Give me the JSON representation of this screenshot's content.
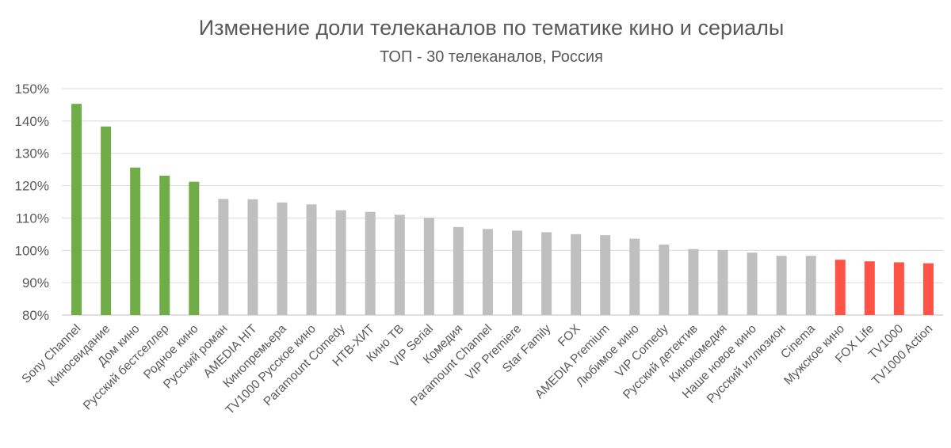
{
  "chart_data": {
    "type": "bar",
    "title": "Изменение доли телеканалов по тематике кино и сериалы",
    "subtitle": "ТОП - 30 телеканалов, Россия",
    "xlabel": "",
    "ylabel": "",
    "ylim": [
      80,
      150
    ],
    "yticks": [
      "80%",
      "90%",
      "100%",
      "110%",
      "120%",
      "130%",
      "140%",
      "150%"
    ],
    "grid": true,
    "legend": "none",
    "colors": {
      "growth": "#70ad47",
      "neutral": "#bfbfbf",
      "decline": "#ff5347"
    },
    "categories": [
      "Sony Channel",
      "Киносвидание",
      "Дом кино",
      "Русский бестселлер",
      "Родное кино",
      "Русский роман",
      "AMEDIA HIT",
      "Кинопремьера",
      "TV1000 Русское кино",
      "Paramount Comedy",
      "НТВ-ХИТ",
      "Кино ТВ",
      "VIP Serial",
      "Комедия",
      "Paramount Channel",
      "VIP Premiere",
      "Star Family",
      "FOX",
      "AMEDIA Premium",
      "Любимое кино",
      "VIP Comedy",
      "Русский детектив",
      "Кинокомедия",
      "Наше новое кино",
      "Русский иллюзион",
      "Cinema",
      "Мужское кино",
      "FOX Life",
      "TV1000",
      "TV1000 Action"
    ],
    "values": [
      145.3,
      138.3,
      125.6,
      123.1,
      121.2,
      115.9,
      115.8,
      114.8,
      114.2,
      112.4,
      111.9,
      111.0,
      110.1,
      107.2,
      106.6,
      106.1,
      105.6,
      105.0,
      104.7,
      103.6,
      101.8,
      100.4,
      100.1,
      99.3,
      98.3,
      98.3,
      97.1,
      96.6,
      96.3,
      96.0
    ],
    "bar_colors": [
      "growth",
      "growth",
      "growth",
      "growth",
      "growth",
      "neutral",
      "neutral",
      "neutral",
      "neutral",
      "neutral",
      "neutral",
      "neutral",
      "neutral",
      "neutral",
      "neutral",
      "neutral",
      "neutral",
      "neutral",
      "neutral",
      "neutral",
      "neutral",
      "neutral",
      "neutral",
      "neutral",
      "neutral",
      "neutral",
      "decline",
      "decline",
      "decline",
      "decline"
    ]
  }
}
